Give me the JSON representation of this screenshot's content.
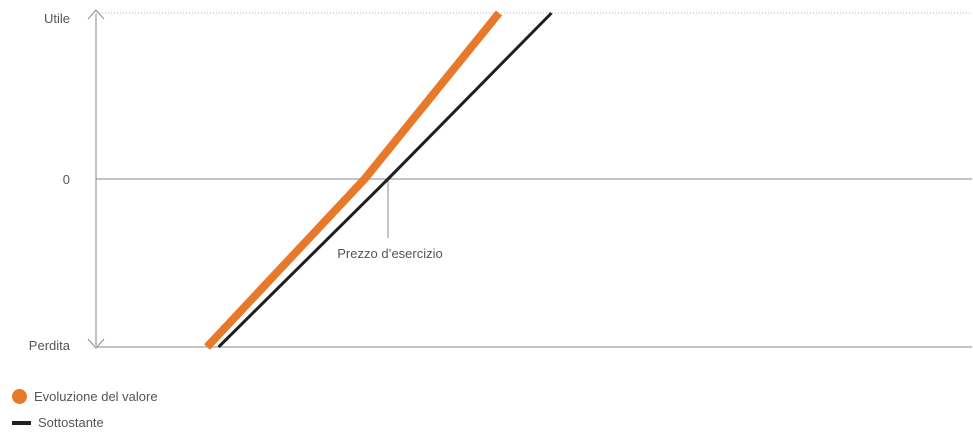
{
  "chart_data": {
    "type": "line",
    "title": "",
    "y_tick_labels": {
      "top": "Utile",
      "zero": "0",
      "bottom": "Perdita"
    },
    "annotation": "Prezzo d’esercizio",
    "strike": 50,
    "xlim": [
      0,
      150
    ],
    "ylim": [
      -30,
      30
    ],
    "series": [
      {
        "name": "Evoluzione del valore",
        "color": "#e8792a",
        "style": "thick",
        "x": [
          19,
          46,
          69
        ],
        "y": [
          -30,
          0,
          30
        ]
      },
      {
        "name": "Sottostante",
        "color": "#1f1f1f",
        "style": "thin",
        "x": [
          21,
          50,
          78
        ],
        "y": [
          -30,
          0,
          30
        ]
      }
    ],
    "grid": false,
    "legend_position": "bottom-left"
  }
}
